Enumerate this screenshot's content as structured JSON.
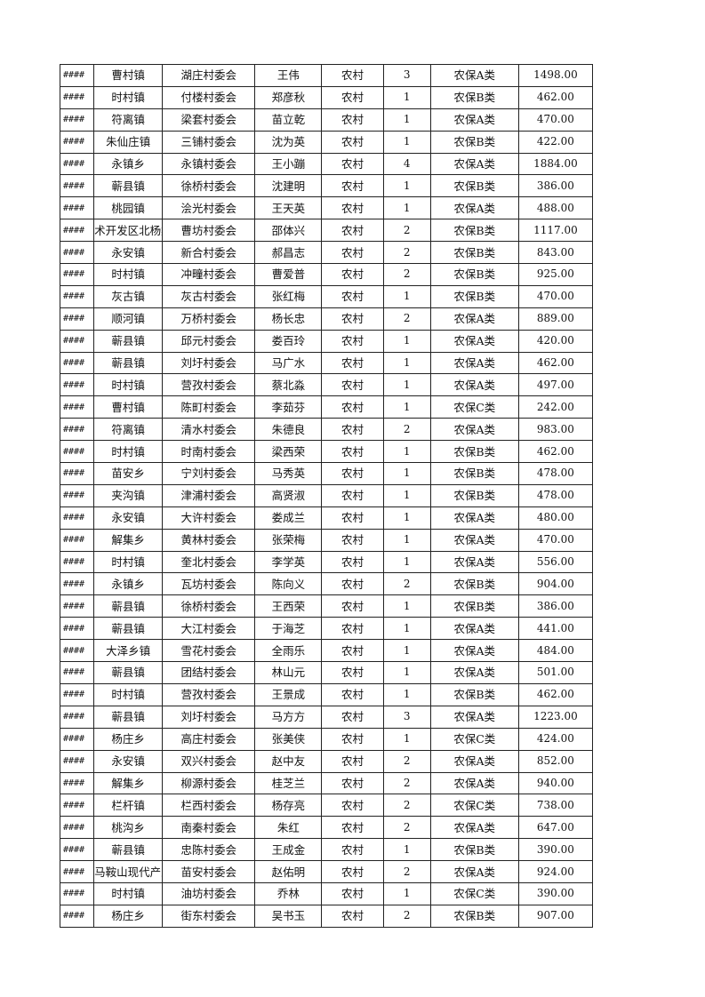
{
  "table": {
    "rows": [
      [
        "####",
        "曹村镇",
        "湖庄村委会",
        "王伟",
        "农村",
        "3",
        "农保A类",
        "1498.00"
      ],
      [
        "####",
        "时村镇",
        "付楼村委会",
        "郑彦秋",
        "农村",
        "1",
        "农保B类",
        "462.00"
      ],
      [
        "####",
        "符离镇",
        "梁套村委会",
        "苗立乾",
        "农村",
        "1",
        "农保A类",
        "470.00"
      ],
      [
        "####",
        "朱仙庄镇",
        "三铺村委会",
        "沈为英",
        "农村",
        "1",
        "农保B类",
        "422.00"
      ],
      [
        "####",
        "永镇乡",
        "永镇村委会",
        "王小蹦",
        "农村",
        "4",
        "农保A类",
        "1884.00"
      ],
      [
        "####",
        "蕲县镇",
        "徐桥村委会",
        "沈建明",
        "农村",
        "1",
        "农保B类",
        "386.00"
      ],
      [
        "####",
        "桃园镇",
        "浍光村委会",
        "王天英",
        "农村",
        "1",
        "农保A类",
        "488.00"
      ],
      [
        "####",
        "术开发区北杨集",
        "曹坊村委会",
        "邵体兴",
        "农村",
        "2",
        "农保B类",
        "1117.00"
      ],
      [
        "####",
        "永安镇",
        "新合村委会",
        "郝昌志",
        "农村",
        "2",
        "农保B类",
        "843.00"
      ],
      [
        "####",
        "时村镇",
        "冲疃村委会",
        "曹爱普",
        "农村",
        "2",
        "农保B类",
        "925.00"
      ],
      [
        "####",
        "灰古镇",
        "灰古村委会",
        "张红梅",
        "农村",
        "1",
        "农保B类",
        "470.00"
      ],
      [
        "####",
        "顺河镇",
        "万桥村委会",
        "杨长忠",
        "农村",
        "2",
        "农保A类",
        "889.00"
      ],
      [
        "####",
        "蕲县镇",
        "邱元村委会",
        "娄百玲",
        "农村",
        "1",
        "农保A类",
        "420.00"
      ],
      [
        "####",
        "蕲县镇",
        "刘圩村委会",
        "马广水",
        "农村",
        "1",
        "农保A类",
        "462.00"
      ],
      [
        "####",
        "时村镇",
        "营孜村委会",
        "蔡北淼",
        "农村",
        "1",
        "农保A类",
        "497.00"
      ],
      [
        "####",
        "曹村镇",
        "陈町村委会",
        "李茹芬",
        "农村",
        "1",
        "农保C类",
        "242.00"
      ],
      [
        "####",
        "符离镇",
        "清水村委会",
        "朱德良",
        "农村",
        "2",
        "农保A类",
        "983.00"
      ],
      [
        "####",
        "时村镇",
        "时南村委会",
        "梁西荣",
        "农村",
        "1",
        "农保B类",
        "462.00"
      ],
      [
        "####",
        "苗安乡",
        "宁刘村委会",
        "马秀英",
        "农村",
        "1",
        "农保B类",
        "478.00"
      ],
      [
        "####",
        "夹沟镇",
        "津浦村委会",
        "高贤淑",
        "农村",
        "1",
        "农保B类",
        "478.00"
      ],
      [
        "####",
        "永安镇",
        "大许村委会",
        "娄成兰",
        "农村",
        "1",
        "农保A类",
        "480.00"
      ],
      [
        "####",
        "解集乡",
        "黄林村委会",
        "张荣梅",
        "农村",
        "1",
        "农保A类",
        "470.00"
      ],
      [
        "####",
        "时村镇",
        "奎北村委会",
        "李学英",
        "农村",
        "1",
        "农保A类",
        "556.00"
      ],
      [
        "####",
        "永镇乡",
        "瓦坊村委会",
        "陈向义",
        "农村",
        "2",
        "农保B类",
        "904.00"
      ],
      [
        "####",
        "蕲县镇",
        "徐桥村委会",
        "王西荣",
        "农村",
        "1",
        "农保B类",
        "386.00"
      ],
      [
        "####",
        "蕲县镇",
        "大江村委会",
        "于海芝",
        "农村",
        "1",
        "农保A类",
        "441.00"
      ],
      [
        "####",
        "大泽乡镇",
        "雪花村委会",
        "全雨乐",
        "农村",
        "1",
        "农保A类",
        "484.00"
      ],
      [
        "####",
        "蕲县镇",
        "团结村委会",
        "林山元",
        "农村",
        "1",
        "农保A类",
        "501.00"
      ],
      [
        "####",
        "时村镇",
        "营孜村委会",
        "王景成",
        "农村",
        "1",
        "农保B类",
        "462.00"
      ],
      [
        "####",
        "蕲县镇",
        "刘圩村委会",
        "马方方",
        "农村",
        "3",
        "农保A类",
        "1223.00"
      ],
      [
        "####",
        "杨庄乡",
        "高庄村委会",
        "张美侠",
        "农村",
        "1",
        "农保C类",
        "424.00"
      ],
      [
        "####",
        "永安镇",
        "双兴村委会",
        "赵中友",
        "农村",
        "2",
        "农保A类",
        "852.00"
      ],
      [
        "####",
        "解集乡",
        "柳源村委会",
        "桂芝兰",
        "农村",
        "2",
        "农保A类",
        "940.00"
      ],
      [
        "####",
        "栏杆镇",
        "栏西村委会",
        "杨存亮",
        "农村",
        "2",
        "农保C类",
        "738.00"
      ],
      [
        "####",
        "桃沟乡",
        "南秦村委会",
        "朱红",
        "农村",
        "2",
        "农保A类",
        "647.00"
      ],
      [
        "####",
        "蕲县镇",
        "忠陈村委会",
        "王成金",
        "农村",
        "1",
        "农保B类",
        "390.00"
      ],
      [
        "####",
        "马鞍山现代产业",
        "苗安村委会",
        "赵佑明",
        "农村",
        "2",
        "农保A类",
        "924.00"
      ],
      [
        "####",
        "时村镇",
        "油坊村委会",
        "乔林",
        "农村",
        "1",
        "农保C类",
        "390.00"
      ],
      [
        "####",
        "杨庄乡",
        "街东村委会",
        "吴书玉",
        "农村",
        "2",
        "农保B类",
        "907.00"
      ]
    ]
  }
}
